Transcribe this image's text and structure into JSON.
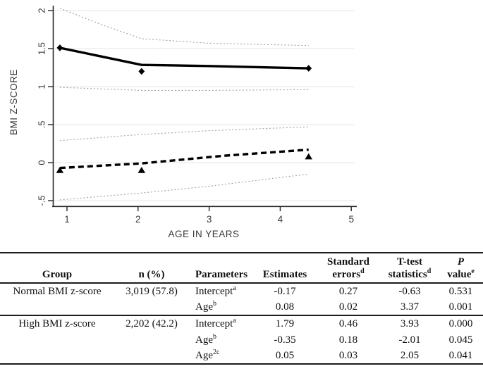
{
  "chart_data": {
    "type": "line",
    "title": "",
    "xlabel": "AGE IN YEARS",
    "ylabel": "BMI Z-SCORE",
    "xlim": [
      0.8,
      5.06
    ],
    "ylim": [
      -0.57,
      2.06
    ],
    "xticks": [
      1,
      2,
      3,
      4,
      5
    ],
    "yticks": [
      2,
      1.5,
      1,
      0.5,
      0,
      -0.5
    ],
    "ytick_labels": [
      "2",
      "1.5",
      "1",
      ".5",
      "0",
      "-.5"
    ],
    "grid": "horizontal",
    "legend": "none",
    "colors": {
      "main_line": "#000000",
      "ci_line": "#a0a0a0",
      "gridline": "#e4e4e4",
      "axis": "#262626"
    },
    "series": [
      {
        "name": "ci-upper-high-bmi",
        "label": "95% CI upper, high BMI z-score",
        "style": "dotted-thin",
        "color": "#a0a0a0",
        "x": [
          0.9,
          1.5,
          2.05,
          3.0,
          4.4
        ],
        "y": [
          2.03,
          1.81,
          1.63,
          1.57,
          1.54
        ]
      },
      {
        "name": "ci-lower-high-bmi",
        "label": "95% CI lower, high BMI z-score",
        "style": "dotted-thin",
        "color": "#a0a0a0",
        "x": [
          0.9,
          2.05,
          3.0,
          4.4
        ],
        "y": [
          0.99,
          0.95,
          0.95,
          0.96
        ]
      },
      {
        "name": "ci-upper-normal-bmi",
        "label": "95% CI upper, normal BMI z-score",
        "style": "dotted-thin",
        "color": "#a0a0a0",
        "x": [
          0.9,
          2.05,
          3.0,
          4.4
        ],
        "y": [
          0.29,
          0.37,
          0.42,
          0.47
        ]
      },
      {
        "name": "ci-lower-normal-bmi",
        "label": "95% CI lower, normal BMI z-score",
        "style": "dotted-thin",
        "color": "#a0a0a0",
        "x": [
          0.9,
          2.05,
          3.0,
          4.4
        ],
        "y": [
          -0.49,
          -0.4,
          -0.31,
          -0.15
        ]
      },
      {
        "name": "predicted-high-bmi",
        "label": "Predicted, high BMI z-score",
        "style": "solid-thick",
        "color": "#000000",
        "x": [
          0.9,
          2.05,
          3.0,
          4.4
        ],
        "y": [
          1.51,
          1.285,
          1.27,
          1.24
        ]
      },
      {
        "name": "predicted-normal-bmi",
        "label": "Predicted, normal BMI z-score",
        "style": "dashed-thick",
        "color": "#000000",
        "x": [
          0.9,
          2.05,
          3.2,
          4.4
        ],
        "y": [
          -0.07,
          -0.01,
          0.09,
          0.17
        ]
      }
    ],
    "markers": [
      {
        "name": "observed-high-bmi",
        "shape": "diamond",
        "color": "#000000",
        "x": [
          0.9,
          2.05,
          4.4
        ],
        "y": [
          1.51,
          1.2,
          1.24
        ]
      },
      {
        "name": "observed-normal-bmi",
        "shape": "triangle",
        "color": "#000000",
        "x": [
          0.9,
          2.05,
          4.4
        ],
        "y": [
          -0.1,
          -0.1,
          0.08
        ]
      }
    ]
  },
  "table": {
    "headers": {
      "group": "Group",
      "n": "n (%)",
      "parameters": "Parameters",
      "estimates": "Estimates",
      "std_line1": "Standard",
      "std_line2": "errors",
      "std_sup": "d",
      "ttest_line1": "T-test",
      "ttest_line2": "statistics",
      "ttest_sup": "d",
      "p_line1": "P",
      "p_line2": "value",
      "p_sup": "e"
    },
    "rows": [
      {
        "group": "Normal BMI z-score",
        "n": "3,019 (57.8)",
        "param": "Intercept",
        "param_sup": "a",
        "estimate": "-0.17",
        "std_error": "0.27",
        "t": "-0.63",
        "p": "0.531"
      },
      {
        "group": "",
        "n": "",
        "param": "Age",
        "param_sup": "b",
        "estimate": "0.08",
        "std_error": "0.02",
        "t": "3.37",
        "p": "0.001"
      },
      {
        "group": "High BMI z-score",
        "n": "2,202 (42.2)",
        "param": "Intercept",
        "param_sup": "a",
        "estimate": "1.79",
        "std_error": "0.46",
        "t": "3.93",
        "p": "0.000"
      },
      {
        "group": "",
        "n": "",
        "param": "Age",
        "param_sup": "b",
        "estimate": "-0.35",
        "std_error": "0.18",
        "t": "-2.01",
        "p": "0.045"
      },
      {
        "group": "",
        "n": "",
        "param": "Age",
        "param_sup": "2c",
        "estimate": "0.05",
        "std_error": "0.03",
        "t": "2.05",
        "p": "0.041"
      }
    ]
  }
}
